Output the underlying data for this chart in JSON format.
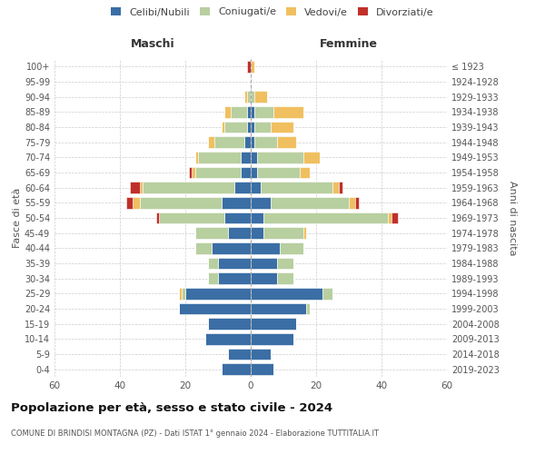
{
  "age_groups": [
    "0-4",
    "5-9",
    "10-14",
    "15-19",
    "20-24",
    "25-29",
    "30-34",
    "35-39",
    "40-44",
    "45-49",
    "50-54",
    "55-59",
    "60-64",
    "65-69",
    "70-74",
    "75-79",
    "80-84",
    "85-89",
    "90-94",
    "95-99",
    "100+"
  ],
  "birth_years": [
    "2019-2023",
    "2014-2018",
    "2009-2013",
    "2004-2008",
    "1999-2003",
    "1994-1998",
    "1989-1993",
    "1984-1988",
    "1979-1983",
    "1974-1978",
    "1969-1973",
    "1964-1968",
    "1959-1963",
    "1954-1958",
    "1949-1953",
    "1944-1948",
    "1939-1943",
    "1934-1938",
    "1929-1933",
    "1924-1928",
    "≤ 1923"
  ],
  "maschi": {
    "celibi": [
      9,
      7,
      14,
      13,
      22,
      20,
      10,
      10,
      12,
      7,
      8,
      9,
      5,
      3,
      3,
      2,
      1,
      1,
      0,
      0,
      0
    ],
    "coniugati": [
      0,
      0,
      0,
      0,
      0,
      1,
      3,
      3,
      5,
      10,
      20,
      25,
      28,
      14,
      13,
      9,
      7,
      5,
      1,
      0,
      0
    ],
    "vedovi": [
      0,
      0,
      0,
      0,
      0,
      1,
      0,
      0,
      0,
      0,
      0,
      2,
      1,
      1,
      1,
      2,
      1,
      2,
      1,
      0,
      0
    ],
    "divorziati": [
      0,
      0,
      0,
      0,
      0,
      0,
      0,
      0,
      0,
      0,
      1,
      2,
      3,
      1,
      0,
      0,
      0,
      0,
      0,
      0,
      1
    ]
  },
  "femmine": {
    "nubili": [
      7,
      6,
      13,
      14,
      17,
      22,
      8,
      8,
      9,
      4,
      4,
      6,
      3,
      2,
      2,
      1,
      1,
      1,
      0,
      0,
      0
    ],
    "coniugate": [
      0,
      0,
      0,
      0,
      1,
      3,
      5,
      5,
      7,
      12,
      38,
      24,
      22,
      13,
      14,
      7,
      5,
      6,
      1,
      0,
      0
    ],
    "vedove": [
      0,
      0,
      0,
      0,
      0,
      0,
      0,
      0,
      0,
      1,
      1,
      2,
      2,
      3,
      5,
      6,
      7,
      9,
      4,
      0,
      1
    ],
    "divorziate": [
      0,
      0,
      0,
      0,
      0,
      0,
      0,
      0,
      0,
      0,
      2,
      1,
      1,
      0,
      0,
      0,
      0,
      0,
      0,
      0,
      0
    ]
  },
  "colors": {
    "celibi": "#3a6ea5",
    "coniugati": "#b8cfa0",
    "vedovi": "#f0c060",
    "divorziati": "#c0302a"
  },
  "title": "Popolazione per età, sesso e stato civile - 2024",
  "subtitle": "COMUNE DI BRINDISI MONTAGNA (PZ) - Dati ISTAT 1° gennaio 2024 - Elaborazione TUTTITALIA.IT",
  "xlabel_left": "Maschi",
  "xlabel_right": "Femmine",
  "ylabel": "Fasce di età",
  "ylabel_right": "Anni di nascita",
  "legend_labels": [
    "Celibi/Nubili",
    "Coniugati/e",
    "Vedovi/e",
    "Divorziati/e"
  ],
  "xlim": 60,
  "background_color": "#ffffff"
}
